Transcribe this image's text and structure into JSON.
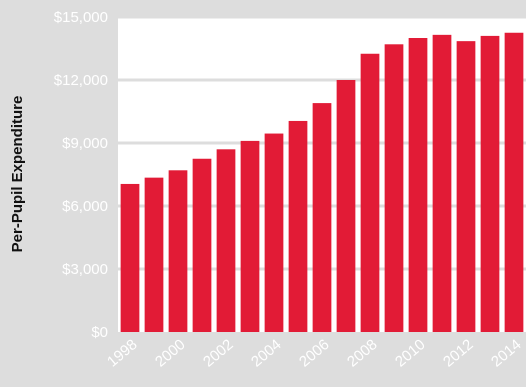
{
  "chart_data": {
    "type": "bar",
    "title": "",
    "xlabel": "",
    "ylabel": "Per-Pupil Expenditure",
    "ylim": [
      0,
      15000
    ],
    "yticks": [
      0,
      3000,
      6000,
      9000,
      12000,
      15000
    ],
    "ytick_labels": [
      "$0",
      "$3,000",
      "$6,000",
      "$9,000",
      "$12,000",
      "$15,000"
    ],
    "categories": [
      "1998",
      "1999",
      "2000",
      "2001",
      "2002",
      "2003",
      "2004",
      "2005",
      "2006",
      "2007",
      "2008",
      "2009",
      "2010",
      "2011",
      "2012",
      "2013",
      "2014"
    ],
    "xtick_labels": [
      "1998",
      "2000",
      "2002",
      "2004",
      "2006",
      "2008",
      "2010",
      "2012",
      "2014"
    ],
    "values": [
      7050,
      7350,
      7700,
      8250,
      8700,
      9100,
      9450,
      10050,
      10900,
      12000,
      13250,
      13700,
      14000,
      14150,
      13850,
      14100,
      14250
    ],
    "grid": true,
    "colors": {
      "bar": "#e21b36",
      "plot_bg": "#ffffff",
      "page_bg": "#dddddd",
      "grid": "#dddddd"
    }
  }
}
